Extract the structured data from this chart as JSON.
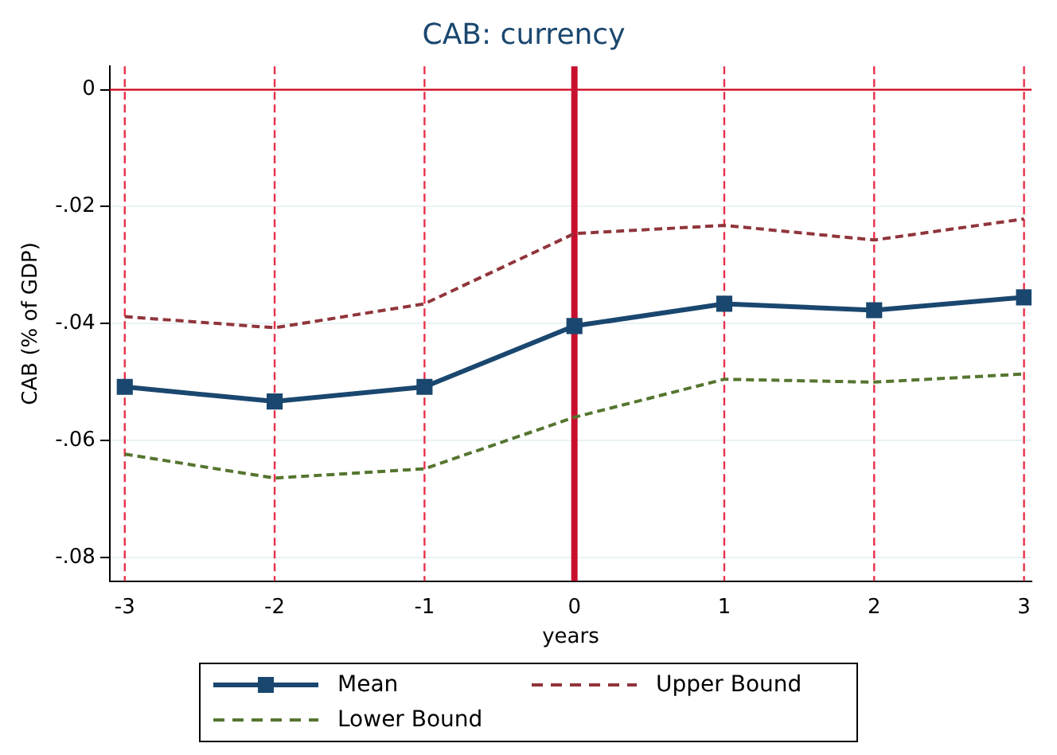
{
  "chart_data": {
    "type": "line",
    "title": "CAB: currency",
    "xlabel": "years",
    "ylabel": "CAB (% of GDP)",
    "x": [
      -3,
      -2,
      -1,
      0,
      1,
      2,
      3
    ],
    "xlim": [
      -3.1,
      3.05
    ],
    "xticks": [
      -3,
      -2,
      -1,
      0,
      1,
      2,
      3
    ],
    "ylim": [
      -0.084,
      0.004
    ],
    "yticks": [
      {
        "value": 0,
        "label": "0"
      },
      {
        "value": -0.02,
        "label": "-.02"
      },
      {
        "value": -0.04,
        "label": "-.04"
      },
      {
        "value": -0.06,
        "label": "-.06"
      },
      {
        "value": -0.08,
        "label": "-.08"
      }
    ],
    "grid": "y",
    "legend": "bottom",
    "series": [
      {
        "name": "Mean",
        "color": "#1a476f",
        "marker": "square",
        "line_style": "solid",
        "values": [
          -0.0508,
          -0.0533,
          -0.0508,
          -0.0404,
          -0.0366,
          -0.0377,
          -0.0355
        ]
      },
      {
        "name": "Upper Bound",
        "color": "#90353b",
        "marker": "none",
        "line_style": "dashed",
        "values": [
          -0.0388,
          -0.0407,
          -0.0366,
          -0.0246,
          -0.0232,
          -0.0257,
          -0.0221
        ]
      },
      {
        "name": "Lower Bound",
        "color": "#55752f",
        "marker": "none",
        "line_style": "dashed",
        "values": [
          -0.0623,
          -0.0664,
          -0.0648,
          -0.056,
          -0.0495,
          -0.05,
          -0.0486
        ]
      }
    ],
    "ref_lines": [
      {
        "axis": "y",
        "value": 0,
        "color": "#d0021b",
        "line_style": "solid"
      },
      {
        "axis": "x",
        "value": -3,
        "color": "#e8304a",
        "line_style": "dashed"
      },
      {
        "axis": "x",
        "value": -2,
        "color": "#e8304a",
        "line_style": "dashed"
      },
      {
        "axis": "x",
        "value": -1,
        "color": "#e8304a",
        "line_style": "dashed"
      },
      {
        "axis": "x",
        "value": 0,
        "color": "#c8102e",
        "line_style": "solid"
      },
      {
        "axis": "x",
        "value": 1,
        "color": "#e8304a",
        "line_style": "dashed"
      },
      {
        "axis": "x",
        "value": 2,
        "color": "#e8304a",
        "line_style": "dashed"
      },
      {
        "axis": "x",
        "value": 3,
        "color": "#e8304a",
        "line_style": "dashed"
      }
    ]
  }
}
